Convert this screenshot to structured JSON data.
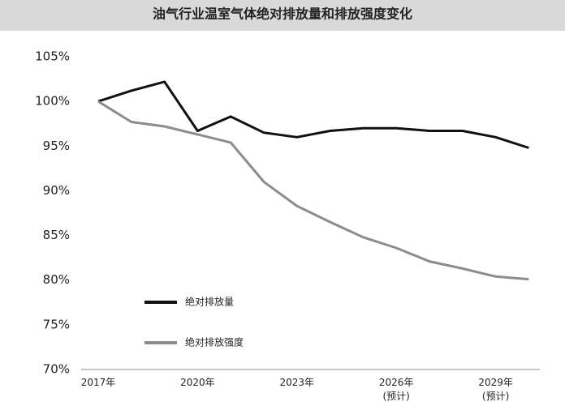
{
  "chart_data": {
    "type": "line",
    "title": "油气行业温室气体绝对排放量和排放强度变化",
    "categories": [
      "2017年",
      null,
      null,
      "2020年",
      null,
      null,
      "2023年",
      null,
      null,
      "2026年\n(预计)",
      null,
      null,
      "2029年\n(预计)",
      null
    ],
    "series": [
      {
        "name": "绝对排放量",
        "color": "#111111",
        "values": [
          100,
          101.2,
          102.2,
          96.7,
          98.3,
          96.5,
          96.0,
          96.7,
          97.0,
          97.0,
          96.7,
          96.7,
          96.0,
          94.8
        ]
      },
      {
        "name": "绝对排放强度",
        "color": "#8c8c8c",
        "values": [
          100,
          97.7,
          97.2,
          96.3,
          95.4,
          91.0,
          88.3,
          86.5,
          84.8,
          83.6,
          82.1,
          81.3,
          80.4,
          80.1
        ]
      }
    ],
    "ylim": [
      70,
      105
    ],
    "yticks": [
      {
        "value": 70,
        "label": "70%"
      },
      {
        "value": 75,
        "label": "75%"
      },
      {
        "value": 80,
        "label": "80%"
      },
      {
        "value": 85,
        "label": "85%"
      },
      {
        "value": 90,
        "label": "90%"
      },
      {
        "value": 95,
        "label": "95%"
      },
      {
        "value": 100,
        "label": "100%"
      },
      {
        "value": 105,
        "label": "105%"
      }
    ],
    "grid": false,
    "legend": "left"
  }
}
